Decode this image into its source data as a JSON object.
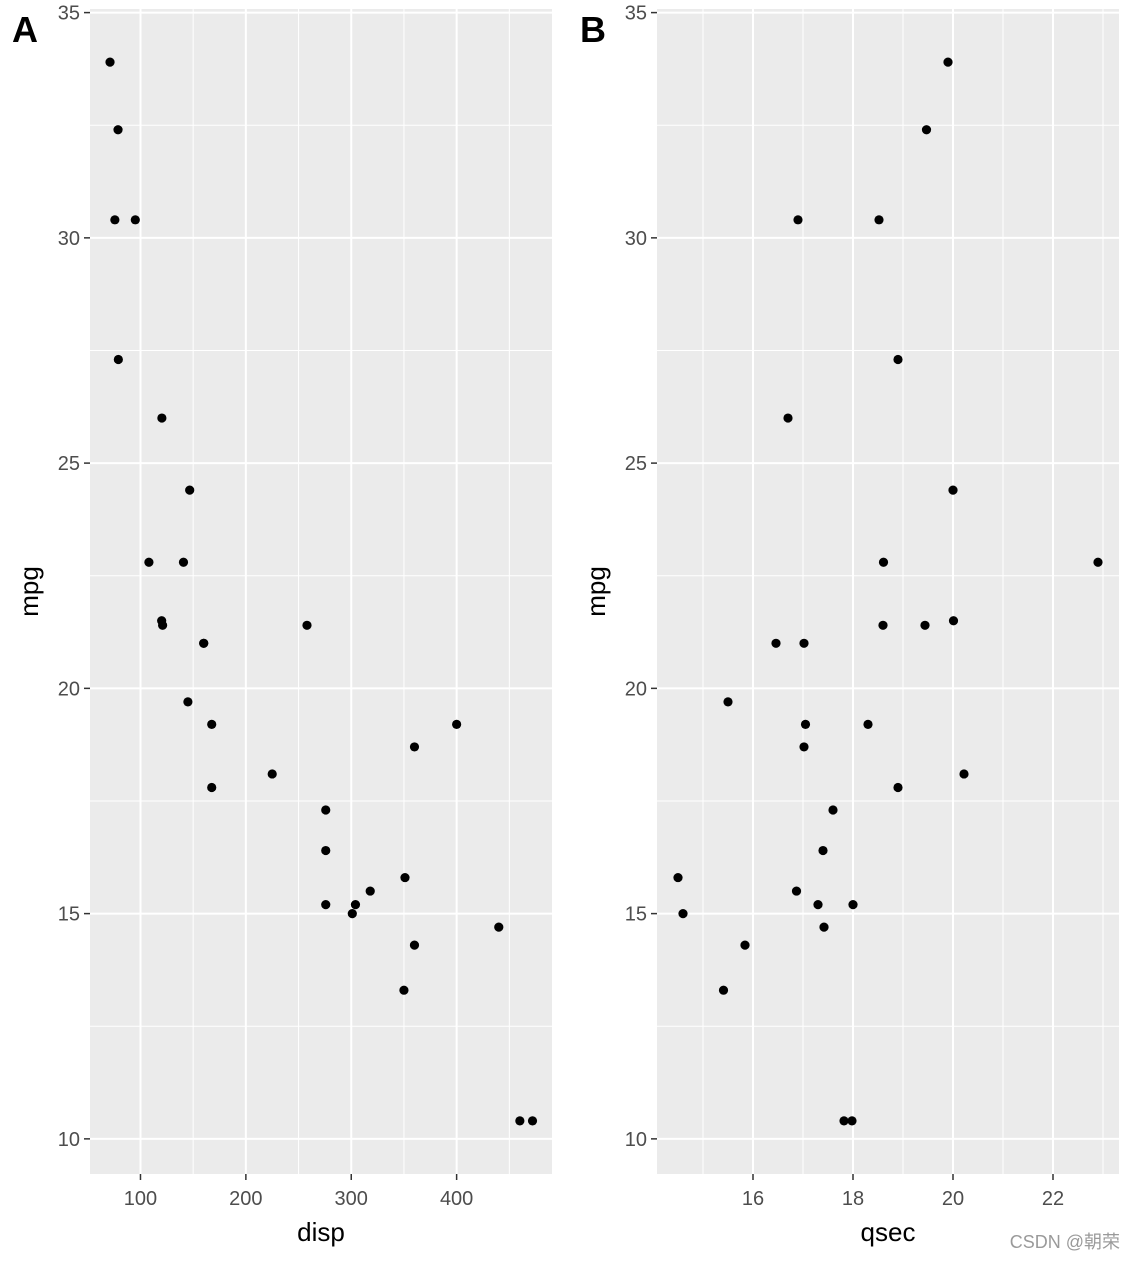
{
  "chart_data": [
    {
      "type": "scatter",
      "tag": "A",
      "xlabel": "disp",
      "ylabel": "mpg",
      "xlim": [
        52.1,
        490.5
      ],
      "ylim": [
        9.22,
        35.08
      ],
      "xticks": [
        100,
        200,
        300,
        400
      ],
      "yticks": [
        10,
        15,
        20,
        25,
        30,
        35
      ],
      "grid": true,
      "points": [
        {
          "x": 160,
          "y": 21.0
        },
        {
          "x": 160,
          "y": 21.0
        },
        {
          "x": 108,
          "y": 22.8
        },
        {
          "x": 258,
          "y": 21.4
        },
        {
          "x": 360,
          "y": 18.7
        },
        {
          "x": 225,
          "y": 18.1
        },
        {
          "x": 360,
          "y": 14.3
        },
        {
          "x": 146.7,
          "y": 24.4
        },
        {
          "x": 140.8,
          "y": 22.8
        },
        {
          "x": 167.6,
          "y": 19.2
        },
        {
          "x": 167.6,
          "y": 17.8
        },
        {
          "x": 275.8,
          "y": 16.4
        },
        {
          "x": 275.8,
          "y": 17.3
        },
        {
          "x": 275.8,
          "y": 15.2
        },
        {
          "x": 472,
          "y": 10.4
        },
        {
          "x": 460,
          "y": 10.4
        },
        {
          "x": 440,
          "y": 14.7
        },
        {
          "x": 78.7,
          "y": 32.4
        },
        {
          "x": 75.7,
          "y": 30.4
        },
        {
          "x": 71.1,
          "y": 33.9
        },
        {
          "x": 120.1,
          "y": 21.5
        },
        {
          "x": 318,
          "y": 15.5
        },
        {
          "x": 304,
          "y": 15.2
        },
        {
          "x": 350,
          "y": 13.3
        },
        {
          "x": 400,
          "y": 19.2
        },
        {
          "x": 79,
          "y": 27.3
        },
        {
          "x": 120.3,
          "y": 26.0
        },
        {
          "x": 95.1,
          "y": 30.4
        },
        {
          "x": 351,
          "y": 15.8
        },
        {
          "x": 145,
          "y": 19.7
        },
        {
          "x": 301,
          "y": 15.0
        },
        {
          "x": 121,
          "y": 21.4
        }
      ]
    },
    {
      "type": "scatter",
      "tag": "B",
      "xlabel": "qsec",
      "ylabel": "mpg",
      "xlim": [
        14.08,
        23.32
      ],
      "ylim": [
        9.22,
        35.08
      ],
      "xticks": [
        16,
        18,
        20,
        22
      ],
      "yticks": [
        10,
        15,
        20,
        25,
        30,
        35
      ],
      "grid": true,
      "points": [
        {
          "x": 16.46,
          "y": 21.0
        },
        {
          "x": 17.02,
          "y": 21.0
        },
        {
          "x": 18.61,
          "y": 22.8
        },
        {
          "x": 19.44,
          "y": 21.4
        },
        {
          "x": 17.02,
          "y": 18.7
        },
        {
          "x": 20.22,
          "y": 18.1
        },
        {
          "x": 15.84,
          "y": 14.3
        },
        {
          "x": 20.0,
          "y": 24.4
        },
        {
          "x": 22.9,
          "y": 22.8
        },
        {
          "x": 18.3,
          "y": 19.2
        },
        {
          "x": 18.9,
          "y": 17.8
        },
        {
          "x": 17.4,
          "y": 16.4
        },
        {
          "x": 17.6,
          "y": 17.3
        },
        {
          "x": 18.0,
          "y": 15.2
        },
        {
          "x": 17.98,
          "y": 10.4
        },
        {
          "x": 17.82,
          "y": 10.4
        },
        {
          "x": 17.42,
          "y": 14.7
        },
        {
          "x": 19.47,
          "y": 32.4
        },
        {
          "x": 18.52,
          "y": 30.4
        },
        {
          "x": 19.9,
          "y": 33.9
        },
        {
          "x": 20.01,
          "y": 21.5
        },
        {
          "x": 16.87,
          "y": 15.5
        },
        {
          "x": 17.3,
          "y": 15.2
        },
        {
          "x": 15.41,
          "y": 13.3
        },
        {
          "x": 17.05,
          "y": 19.2
        },
        {
          "x": 18.9,
          "y": 27.3
        },
        {
          "x": 16.7,
          "y": 26.0
        },
        {
          "x": 16.9,
          "y": 30.4
        },
        {
          "x": 14.5,
          "y": 15.8
        },
        {
          "x": 15.5,
          "y": 19.7
        },
        {
          "x": 14.6,
          "y": 15.0
        },
        {
          "x": 18.6,
          "y": 21.4
        }
      ]
    }
  ],
  "watermark": "CSDN @朝荣"
}
